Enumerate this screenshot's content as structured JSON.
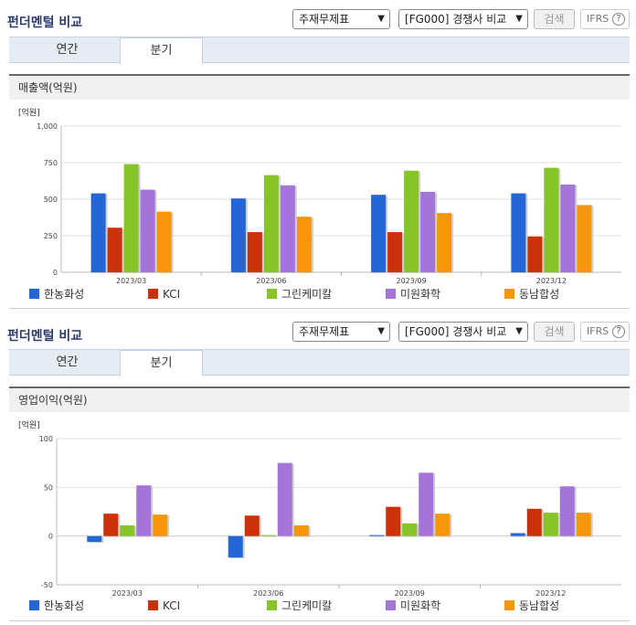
{
  "colors": [
    "#2566d6",
    "#c9320a",
    "#86c42a",
    "#a574d8",
    "#f5960d"
  ],
  "legend": [
    "한농화성",
    "KCI",
    "그린케미칼",
    "미원화학",
    "동남합성"
  ],
  "panels": [
    {
      "title": "펀더멘털 비교",
      "select1": "주재무제표",
      "select2": "[FG000] 경쟁사 비교",
      "search": "검색",
      "ifrs": "IFRS",
      "ifrs_q": "?",
      "tabs": [
        "연간",
        "분기"
      ],
      "subhead": "매출액(억원)"
    },
    {
      "title": "펀더멘털 비교",
      "select1": "주재무제표",
      "select2": "[FG000] 경쟁사 비교",
      "search": "검색",
      "ifrs": "IFRS",
      "ifrs_q": "?",
      "tabs": [
        "연간",
        "분기"
      ],
      "subhead": "영업이익(억원)"
    }
  ],
  "chart_data": [
    {
      "type": "bar",
      "title": "매출액(억원)",
      "unit_label": "[억원]",
      "categories": [
        "2023/03",
        "2023/06",
        "2023/09",
        "2023/12"
      ],
      "ylim": [
        0,
        1000
      ],
      "yticks": [
        0,
        250,
        500,
        750,
        1000
      ],
      "ytick_labels": [
        "0",
        "250",
        "500",
        "750",
        "1,000"
      ],
      "series": [
        {
          "name": "한농화성",
          "values": [
            540,
            505,
            530,
            540
          ]
        },
        {
          "name": "KCI",
          "values": [
            305,
            275,
            275,
            245
          ]
        },
        {
          "name": "그린케미칼",
          "values": [
            740,
            665,
            695,
            715
          ]
        },
        {
          "name": "미원화학",
          "values": [
            565,
            595,
            550,
            600
          ]
        },
        {
          "name": "동남합성",
          "values": [
            415,
            380,
            405,
            460
          ]
        }
      ],
      "grid": true,
      "legend_position": "bottom"
    },
    {
      "type": "bar",
      "title": "영업이익(억원)",
      "unit_label": "[억원]",
      "categories": [
        "2023/03",
        "2023/06",
        "2023/09",
        "2023/12"
      ],
      "ylim": [
        -50,
        100
      ],
      "yticks": [
        -50,
        0,
        50,
        100
      ],
      "ytick_labels": [
        "-50",
        "0",
        "50",
        "100"
      ],
      "series": [
        {
          "name": "한농화성",
          "values": [
            -6,
            -22,
            1,
            3
          ]
        },
        {
          "name": "KCI",
          "values": [
            23,
            21,
            30,
            28
          ]
        },
        {
          "name": "그린케미칼",
          "values": [
            11,
            1,
            13,
            24
          ]
        },
        {
          "name": "미원화학",
          "values": [
            52,
            75,
            65,
            51
          ]
        },
        {
          "name": "동남합성",
          "values": [
            22,
            11,
            23,
            24
          ]
        }
      ],
      "grid": true,
      "legend_position": "bottom"
    }
  ]
}
